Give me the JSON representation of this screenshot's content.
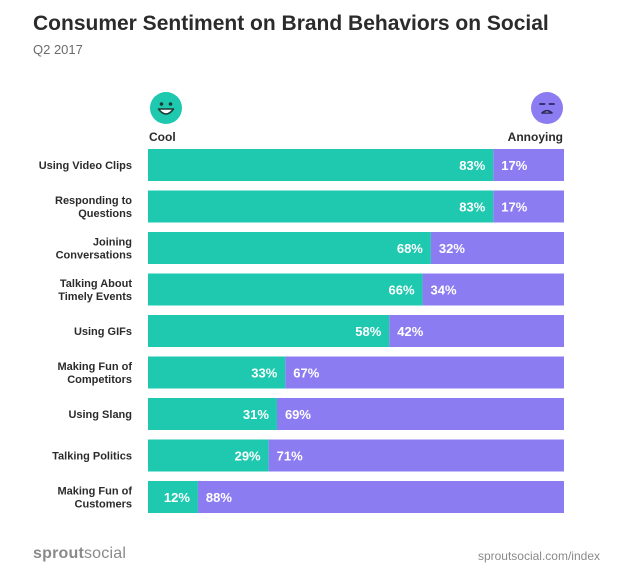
{
  "header": {
    "title": "Consumer Sentiment on Brand Behaviors on Social",
    "subtitle": "Q2 2017"
  },
  "legend": {
    "cool_label": "Cool",
    "annoying_label": "Annoying",
    "cool_icon": "smiley-face-icon",
    "annoying_icon": "frown-face-icon"
  },
  "footer": {
    "logo_bold": "sprout",
    "logo_light": "social",
    "url": "sproutsocial.com/index"
  },
  "colors": {
    "cool": "#1ec9b0",
    "annoying": "#8c7cf2"
  },
  "chart_data": {
    "type": "bar",
    "orientation": "horizontal",
    "stacked": true,
    "categories": [
      "Using Video Clips",
      "Responding to Questions",
      "Joining Conversations",
      "Talking About Timely Events",
      "Using GIFs",
      "Making Fun of Competitors",
      "Using Slang",
      "Talking Politics",
      "Making Fun of Customers"
    ],
    "category_lines": [
      [
        "Using Video Clips"
      ],
      [
        "Responding to",
        "Questions"
      ],
      [
        "Joining",
        "Conversations"
      ],
      [
        "Talking About",
        "Timely Events"
      ],
      [
        "Using GIFs"
      ],
      [
        "Making Fun of",
        "Competitors"
      ],
      [
        "Using Slang"
      ],
      [
        "Talking Politics"
      ],
      [
        "Making Fun of",
        "Customers"
      ]
    ],
    "series": [
      {
        "name": "Cool",
        "values": [
          83,
          83,
          68,
          66,
          58,
          33,
          31,
          29,
          12
        ]
      },
      {
        "name": "Annoying",
        "values": [
          17,
          17,
          32,
          34,
          42,
          67,
          69,
          71,
          88
        ]
      }
    ],
    "value_suffix": "%",
    "xlim": [
      0,
      100
    ]
  }
}
